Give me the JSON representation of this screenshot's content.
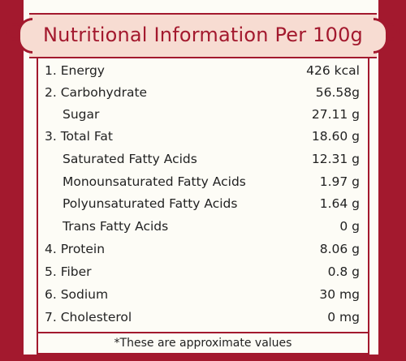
{
  "header": {
    "title": "Nutritional Information Per 100g"
  },
  "rows": [
    {
      "label": "1. Energy",
      "value": "426 kcal",
      "indent": false
    },
    {
      "label": "2. Carbohydrate",
      "value": "56.58g",
      "indent": false
    },
    {
      "label": "Sugar",
      "value": "27.11 g",
      "indent": true
    },
    {
      "label": "3. Total Fat",
      "value": "18.60 g",
      "indent": false
    },
    {
      "label": "Saturated Fatty Acids",
      "value": "12.31 g",
      "indent": true
    },
    {
      "label": "Monounsaturated Fatty Acids",
      "value": "1.97 g",
      "indent": true
    },
    {
      "label": "Polyunsaturated Fatty Acids",
      "value": "1.64 g",
      "indent": true
    },
    {
      "label": "Trans Fatty Acids",
      "value": "0 g",
      "indent": true
    },
    {
      "label": "4. Protein",
      "value": "8.06 g",
      "indent": false
    },
    {
      "label": "5. Fiber",
      "value": "0.8 g",
      "indent": false
    },
    {
      "label": "6. Sodium",
      "value": "30 mg",
      "indent": false
    },
    {
      "label": "7. Cholesterol",
      "value": "0 mg",
      "indent": false
    }
  ],
  "footer": {
    "note": "*These are approximate values"
  },
  "colors": {
    "accent": "#a3192e",
    "title_plate": "#f7dcd2",
    "panel": "#fdfcf6",
    "text": "#222222"
  }
}
